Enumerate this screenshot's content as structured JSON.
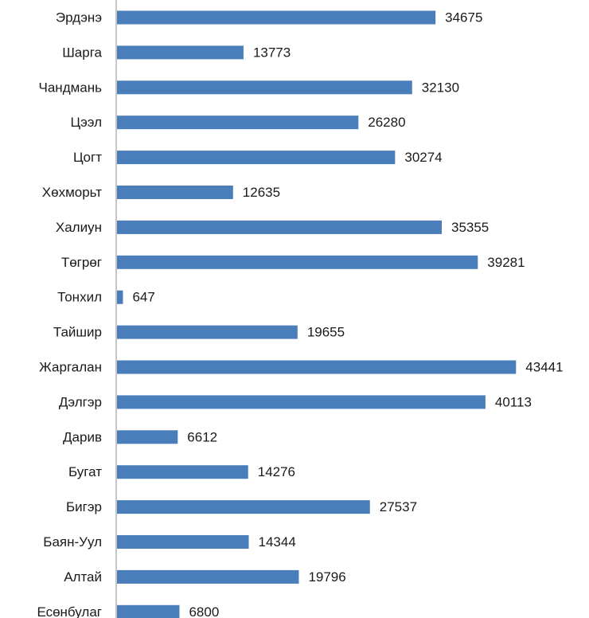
{
  "chart_data": {
    "type": "bar",
    "orientation": "horizontal",
    "categories": [
      "Эрдэнэ",
      "Шарга",
      "Чандмань",
      "Цээл",
      "Цогт",
      "Хөхморьт",
      "Халиун",
      "Төгрөг",
      "Тонхил",
      "Тайшир",
      "Жаргалан",
      "Дэлгэр",
      "Дарив",
      "Бугат",
      "Бигэр",
      "Баян-Уул",
      "Алтай",
      "Есөнбулаг"
    ],
    "values": [
      34675,
      13773,
      32130,
      26280,
      30274,
      12635,
      35355,
      39281,
      647,
      19655,
      43441,
      40113,
      6612,
      14276,
      27537,
      14344,
      19796,
      6800
    ],
    "bar_color": "#4a7ebb",
    "data_labels": true,
    "legend": "none",
    "grid": false
  }
}
